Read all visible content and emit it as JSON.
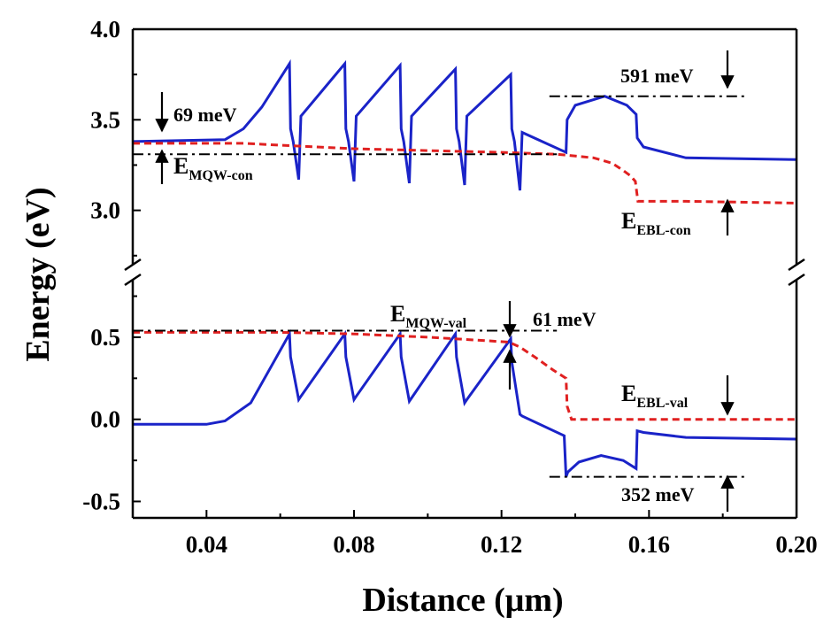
{
  "chart_data": {
    "type": "line",
    "xlabel": "Distance (μm)",
    "ylabel": "Energy (eV)",
    "xlim": [
      0.02,
      0.2
    ],
    "x_ticks": [
      "0.04",
      "0.08",
      "0.12",
      "0.16",
      "0.20"
    ],
    "y_broken_axis": true,
    "upper_panel": {
      "ylim": [
        2.7,
        4.0
      ],
      "y_ticks": [
        "3.0",
        "3.5",
        "4.0"
      ]
    },
    "lower_panel": {
      "ylim": [
        -0.6,
        0.85
      ],
      "y_ticks": [
        "-0.5",
        "0.0",
        "0.5"
      ]
    },
    "grid": false,
    "series": [
      {
        "id": "conduction-band",
        "panel": "upper",
        "color": "#1a23c8",
        "style": "solid",
        "x": [
          0.02,
          0.045,
          0.05,
          0.055,
          0.0625,
          0.0628,
          0.0635,
          0.065,
          0.0656,
          0.0775,
          0.0778,
          0.0785,
          0.08,
          0.0806,
          0.0925,
          0.0928,
          0.0935,
          0.095,
          0.0956,
          0.1075,
          0.1078,
          0.1085,
          0.11,
          0.1106,
          0.1225,
          0.1228,
          0.1235,
          0.125,
          0.1256,
          0.1375,
          0.1378,
          0.14,
          0.148,
          0.154,
          0.1565,
          0.1568,
          0.1585,
          0.17,
          0.2
        ],
        "y": [
          3.38,
          3.39,
          3.45,
          3.57,
          3.81,
          3.45,
          3.38,
          3.17,
          3.52,
          3.81,
          3.45,
          3.38,
          3.16,
          3.52,
          3.8,
          3.45,
          3.38,
          3.15,
          3.52,
          3.78,
          3.45,
          3.38,
          3.14,
          3.52,
          3.75,
          3.45,
          3.38,
          3.11,
          3.43,
          3.32,
          3.5,
          3.58,
          3.63,
          3.58,
          3.53,
          3.4,
          3.35,
          3.29,
          3.28
        ]
      },
      {
        "id": "electron-quasi-fermi-level",
        "panel": "upper",
        "color": "#e02020",
        "style": "dashed",
        "x": [
          0.02,
          0.05,
          0.06,
          0.08,
          0.1,
          0.12,
          0.135,
          0.145,
          0.15,
          0.153,
          0.155,
          0.1563,
          0.157,
          0.17,
          0.2
        ],
        "y": [
          3.37,
          3.37,
          3.36,
          3.34,
          3.33,
          3.32,
          3.31,
          3.29,
          3.26,
          3.22,
          3.19,
          3.16,
          3.05,
          3.05,
          3.04
        ]
      },
      {
        "id": "valence-band",
        "panel": "lower",
        "color": "#1a23c8",
        "style": "solid",
        "x": [
          0.02,
          0.04,
          0.045,
          0.052,
          0.0625,
          0.0628,
          0.065,
          0.0656,
          0.0775,
          0.0778,
          0.08,
          0.0806,
          0.0925,
          0.0928,
          0.095,
          0.0956,
          0.1075,
          0.1078,
          0.11,
          0.1106,
          0.1225,
          0.1228,
          0.125,
          0.1256,
          0.137,
          0.1375,
          0.138,
          0.141,
          0.147,
          0.153,
          0.1565,
          0.1568,
          0.1585,
          0.17,
          0.2
        ],
        "y": [
          -0.03,
          -0.03,
          -0.01,
          0.1,
          0.52,
          0.38,
          0.12,
          0.14,
          0.52,
          0.38,
          0.12,
          0.14,
          0.52,
          0.38,
          0.11,
          0.13,
          0.52,
          0.38,
          0.1,
          0.12,
          0.49,
          0.35,
          0.03,
          0.02,
          -0.1,
          -0.35,
          -0.32,
          -0.26,
          -0.22,
          -0.25,
          -0.3,
          -0.07,
          -0.08,
          -0.11,
          -0.12
        ]
      },
      {
        "id": "hole-quasi-fermi-level",
        "panel": "lower",
        "color": "#e02020",
        "style": "dashed",
        "x": [
          0.02,
          0.06,
          0.08,
          0.1,
          0.115,
          0.122,
          0.125,
          0.129,
          0.134,
          0.1375,
          0.1378,
          0.139,
          0.16,
          0.2
        ],
        "y": [
          0.53,
          0.53,
          0.52,
          0.5,
          0.48,
          0.47,
          0.44,
          0.38,
          0.3,
          0.25,
          0.08,
          0.0,
          0.0,
          0.0
        ]
      },
      {
        "id": "ref-upper-mqw-con",
        "panel": "upper",
        "color": "#000000",
        "style": "dashdot",
        "x": [
          0.02,
          0.135
        ],
        "y": [
          3.31,
          3.31
        ]
      },
      {
        "id": "ref-upper-ebl",
        "panel": "upper",
        "color": "#000000",
        "style": "dashdot",
        "x": [
          0.133,
          0.187
        ],
        "y": [
          3.63,
          3.63
        ]
      },
      {
        "id": "ref-lower-mqw-val",
        "panel": "lower",
        "color": "#000000",
        "style": "dashdot",
        "x": [
          0.02,
          0.135
        ],
        "y": [
          0.54,
          0.54
        ]
      },
      {
        "id": "ref-lower-ebl",
        "panel": "lower",
        "color": "#000000",
        "style": "dashdot",
        "x": [
          0.133,
          0.187
        ],
        "y": [
          -0.35,
          -0.35
        ]
      }
    ],
    "annotations": [
      {
        "id": "a-69",
        "text": "69 meV"
      },
      {
        "id": "a-591",
        "text": "591 meV"
      },
      {
        "id": "a-61",
        "text": "61 meV"
      },
      {
        "id": "a-352",
        "text": "352 meV"
      },
      {
        "id": "e-mqw-con",
        "main": "E",
        "sub": "MQW-con"
      },
      {
        "id": "e-ebl-con",
        "main": "E",
        "sub": "EBL-con"
      },
      {
        "id": "e-mqw-val",
        "main": "E",
        "sub": "MQW-val"
      },
      {
        "id": "e-ebl-val",
        "main": "E",
        "sub": "EBL-val"
      }
    ]
  }
}
